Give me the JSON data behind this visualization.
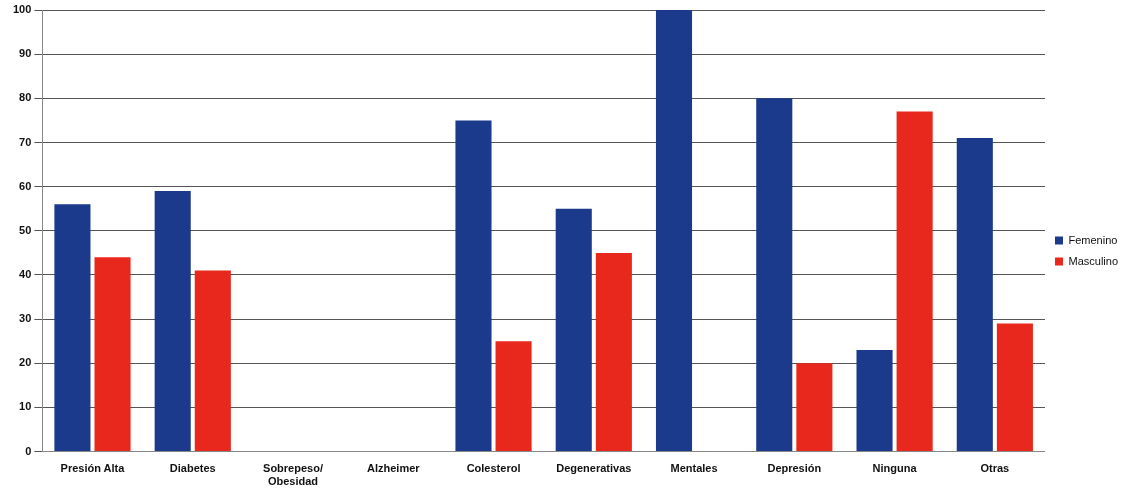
{
  "chart_data": {
    "type": "bar",
    "categories": [
      "Presión Alta",
      "Diabetes",
      "Sobrepeso/ Obesidad",
      "Alzheimer",
      "Colesterol",
      "Degenerativas",
      "Mentales",
      "Depresión",
      "Ninguna",
      "Otras"
    ],
    "series": [
      {
        "name": "Femenino",
        "color": "#1b3a8c",
        "values": [
          56,
          59,
          0,
          0,
          75,
          55,
          100,
          80,
          23,
          71
        ]
      },
      {
        "name": "Masculino",
        "color": "#e8281c",
        "values": [
          44,
          41,
          0,
          0,
          25,
          45,
          0,
          20,
          77,
          29
        ]
      }
    ],
    "ylim": [
      0,
      100
    ],
    "yticks": [
      0,
      10,
      20,
      30,
      40,
      50,
      60,
      70,
      80,
      90,
      100
    ],
    "grid": "y",
    "legend": "right"
  }
}
